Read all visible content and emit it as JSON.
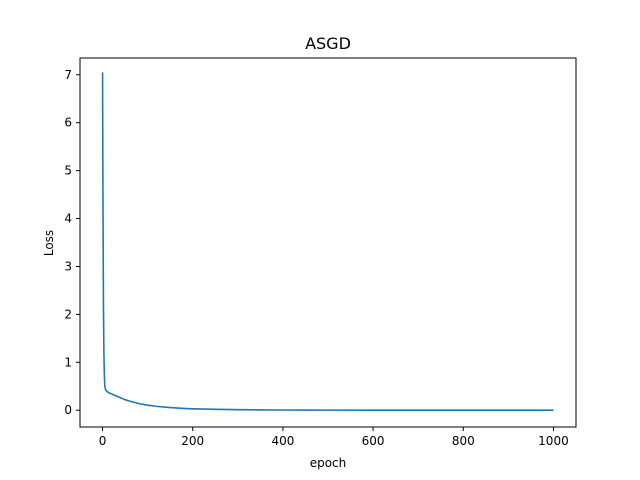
{
  "chart_data": {
    "type": "line",
    "title": "ASGD",
    "xlabel": "epoch",
    "ylabel": "Loss",
    "xlim": [
      -50,
      1050
    ],
    "ylim": [
      -0.35,
      7.35
    ],
    "xticks": [
      0,
      200,
      400,
      600,
      800,
      1000
    ],
    "yticks": [
      0,
      1,
      2,
      3,
      4,
      5,
      6,
      7
    ],
    "xtick_labels": [
      "0",
      "200",
      "400",
      "600",
      "800",
      "1000"
    ],
    "ytick_labels": [
      "0",
      "1",
      "2",
      "3",
      "4",
      "5",
      "6",
      "7"
    ],
    "grid": false,
    "series": [
      {
        "color": "#1f77b4",
        "x": [
          0,
          1,
          2,
          3,
          4,
          5,
          7,
          10,
          15,
          20,
          30,
          40,
          50,
          60,
          80,
          100,
          120,
          150,
          180,
          200,
          250,
          300,
          350,
          400,
          450,
          500,
          600,
          700,
          800,
          900,
          1000
        ],
        "y": [
          7.05,
          4.2,
          2.2,
          1.2,
          0.75,
          0.5,
          0.42,
          0.39,
          0.36,
          0.34,
          0.3,
          0.26,
          0.22,
          0.19,
          0.14,
          0.105,
          0.08,
          0.055,
          0.038,
          0.03,
          0.018,
          0.011,
          0.007,
          0.005,
          0.003,
          0.002,
          0.001,
          0.0005,
          0.0003,
          0.0002,
          0.0001
        ]
      }
    ]
  }
}
